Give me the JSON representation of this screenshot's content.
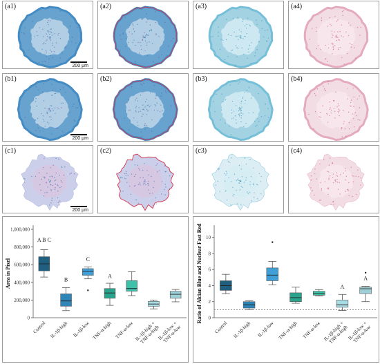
{
  "panels": [
    {
      "label": "(a1)",
      "style": "overlay",
      "row": "a",
      "scale_text": "200 µm"
    },
    {
      "label": "(a2)",
      "style": "overlay-outline",
      "row": "a"
    },
    {
      "label": "(a3)",
      "style": "blue",
      "row": "a"
    },
    {
      "label": "(a4)",
      "style": "red",
      "row": "a"
    },
    {
      "label": "(b1)",
      "style": "overlay",
      "row": "b",
      "scale_text": "200 µm"
    },
    {
      "label": "(b2)",
      "style": "overlay-outline",
      "row": "b"
    },
    {
      "label": "(b3)",
      "style": "blue",
      "row": "b"
    },
    {
      "label": "(b4)",
      "style": "red",
      "row": "b"
    },
    {
      "label": "(c1)",
      "style": "overlay",
      "row": "c",
      "scale_text": "200 µm"
    },
    {
      "label": "(c2)",
      "style": "overlay-outline",
      "row": "c"
    },
    {
      "label": "(c3)",
      "style": "blue",
      "row": "c"
    },
    {
      "label": "(c4)",
      "style": "red",
      "row": "c"
    }
  ],
  "colors": {
    "control": "#1f5f80",
    "il1b_high": "#2e86b8",
    "il1b_low": "#3f9fd6",
    "tnf_high": "#2aa38c",
    "tnf_low": "#3fc0a8",
    "combo_high": "#a9dde6",
    "combo_low": "#9fd0d8",
    "blue_stain": "#3a9fc8",
    "red_stain": "#c84a6a"
  },
  "chart_data": [
    {
      "type": "box",
      "ylabel": "Area in Pixel",
      "ylim": [
        0,
        1000000
      ],
      "yticks": [
        "0",
        "200,000",
        "400,000",
        "600,000",
        "800,000",
        "1,000,000"
      ],
      "categories": [
        "Control",
        "IL-1β-high",
        "IL-1β-low",
        "TNF-α-high",
        "TNF-α-low",
        "IL-1β-high + TNF-α-high",
        "IL-1β-low + TNF-α-low"
      ],
      "category_labels": [
        [
          "Control"
        ],
        [
          "IL-1β-high"
        ],
        [
          "IL-1β-low"
        ],
        [
          "TNF-α-high"
        ],
        [
          "TNF-α-low"
        ],
        [
          "IL-1β-high +",
          "TNF-α-high"
        ],
        [
          "IL-1β-low +",
          "TNF-α-low"
        ]
      ],
      "boxes": [
        {
          "min": 460000,
          "q1": 530000,
          "median": 610000,
          "q3": 690000,
          "max": 770000,
          "outliers": [],
          "color": "#1f5f80"
        },
        {
          "min": 80000,
          "q1": 130000,
          "median": 190000,
          "q3": 270000,
          "max": 340000,
          "outliers": [],
          "color": "#2e86b8"
        },
        {
          "min": 440000,
          "q1": 480000,
          "median": 525000,
          "q3": 555000,
          "max": 575000,
          "outliers": [
            310000
          ],
          "color": "#3f9fd6"
        },
        {
          "min": 140000,
          "q1": 220000,
          "median": 280000,
          "q3": 330000,
          "max": 390000,
          "outliers": [],
          "color": "#2aa38c"
        },
        {
          "min": 250000,
          "q1": 300000,
          "median": 330000,
          "q3": 420000,
          "max": 520000,
          "outliers": [],
          "color": "#3fc0a8"
        },
        {
          "min": 100000,
          "q1": 130000,
          "median": 155000,
          "q3": 185000,
          "max": 200000,
          "outliers": [],
          "color": "#a9dde6"
        },
        {
          "min": 180000,
          "q1": 220000,
          "median": 265000,
          "q3": 300000,
          "max": 320000,
          "outliers": [],
          "color": "#9fd0d8"
        }
      ],
      "annotations": [
        {
          "index": 0,
          "text": "A B C",
          "value": 860000
        },
        {
          "index": 1,
          "text": "B",
          "value": 410000
        },
        {
          "index": 2,
          "text": "C",
          "value": 640000
        },
        {
          "index": 3,
          "text": "A",
          "value": 450000
        }
      ]
    },
    {
      "type": "box",
      "ylabel": "Ratio of Alcian Blue and Nuclear Fast Red",
      "ylim": [
        0,
        11
      ],
      "yticks": [
        "0",
        "2",
        "4",
        "6",
        "8",
        "10"
      ],
      "reference_line": 1,
      "categories": [
        "Control",
        "IL-1β-high",
        "IL-1β-low",
        "TNF-α-high",
        "TNF-α-low",
        "IL-1β-high + TNF-α-high",
        "IL-1β-low + TNF-α-low"
      ],
      "category_labels": [
        [
          "Control"
        ],
        [
          "IL-1β-high"
        ],
        [
          "IL-1β-low"
        ],
        [
          "TNF-α-high"
        ],
        [
          "TNF-α-low"
        ],
        [
          "IL-1β-high +",
          "TNF-α-high"
        ],
        [
          "IL-1β-low +",
          "TNF-α-low"
        ]
      ],
      "boxes": [
        {
          "min": 3.0,
          "q1": 3.4,
          "median": 4.0,
          "q3": 4.6,
          "max": 5.4,
          "outliers": [],
          "color": "#1f5f80"
        },
        {
          "min": 1.0,
          "q1": 1.2,
          "median": 1.6,
          "q3": 2.0,
          "max": 2.1,
          "outliers": [],
          "color": "#2e86b8"
        },
        {
          "min": 4.1,
          "q1": 4.6,
          "median": 5.3,
          "q3": 6.2,
          "max": 7.0,
          "outliers": [
            9.4
          ],
          "color": "#3f9fd6"
        },
        {
          "min": 1.8,
          "q1": 2.0,
          "median": 2.5,
          "q3": 3.1,
          "max": 3.8,
          "outliers": [],
          "color": "#2aa38c"
        },
        {
          "min": 2.7,
          "q1": 2.8,
          "median": 3.0,
          "q3": 3.3,
          "max": 3.5,
          "outliers": [],
          "color": "#3fc0a8"
        },
        {
          "min": 0.9,
          "q1": 1.3,
          "median": 1.6,
          "q3": 2.2,
          "max": 2.9,
          "outliers": [],
          "color": "#a9dde6"
        },
        {
          "min": 2.0,
          "q1": 3.0,
          "median": 3.6,
          "q3": 3.8,
          "max": 3.9,
          "outliers": [
            5.6
          ],
          "color": "#9fd0d8"
        }
      ],
      "annotations": [
        {
          "index": 5,
          "text": "A",
          "value": 3.6
        },
        {
          "index": 6,
          "text": "A",
          "value": 4.7
        }
      ]
    }
  ]
}
